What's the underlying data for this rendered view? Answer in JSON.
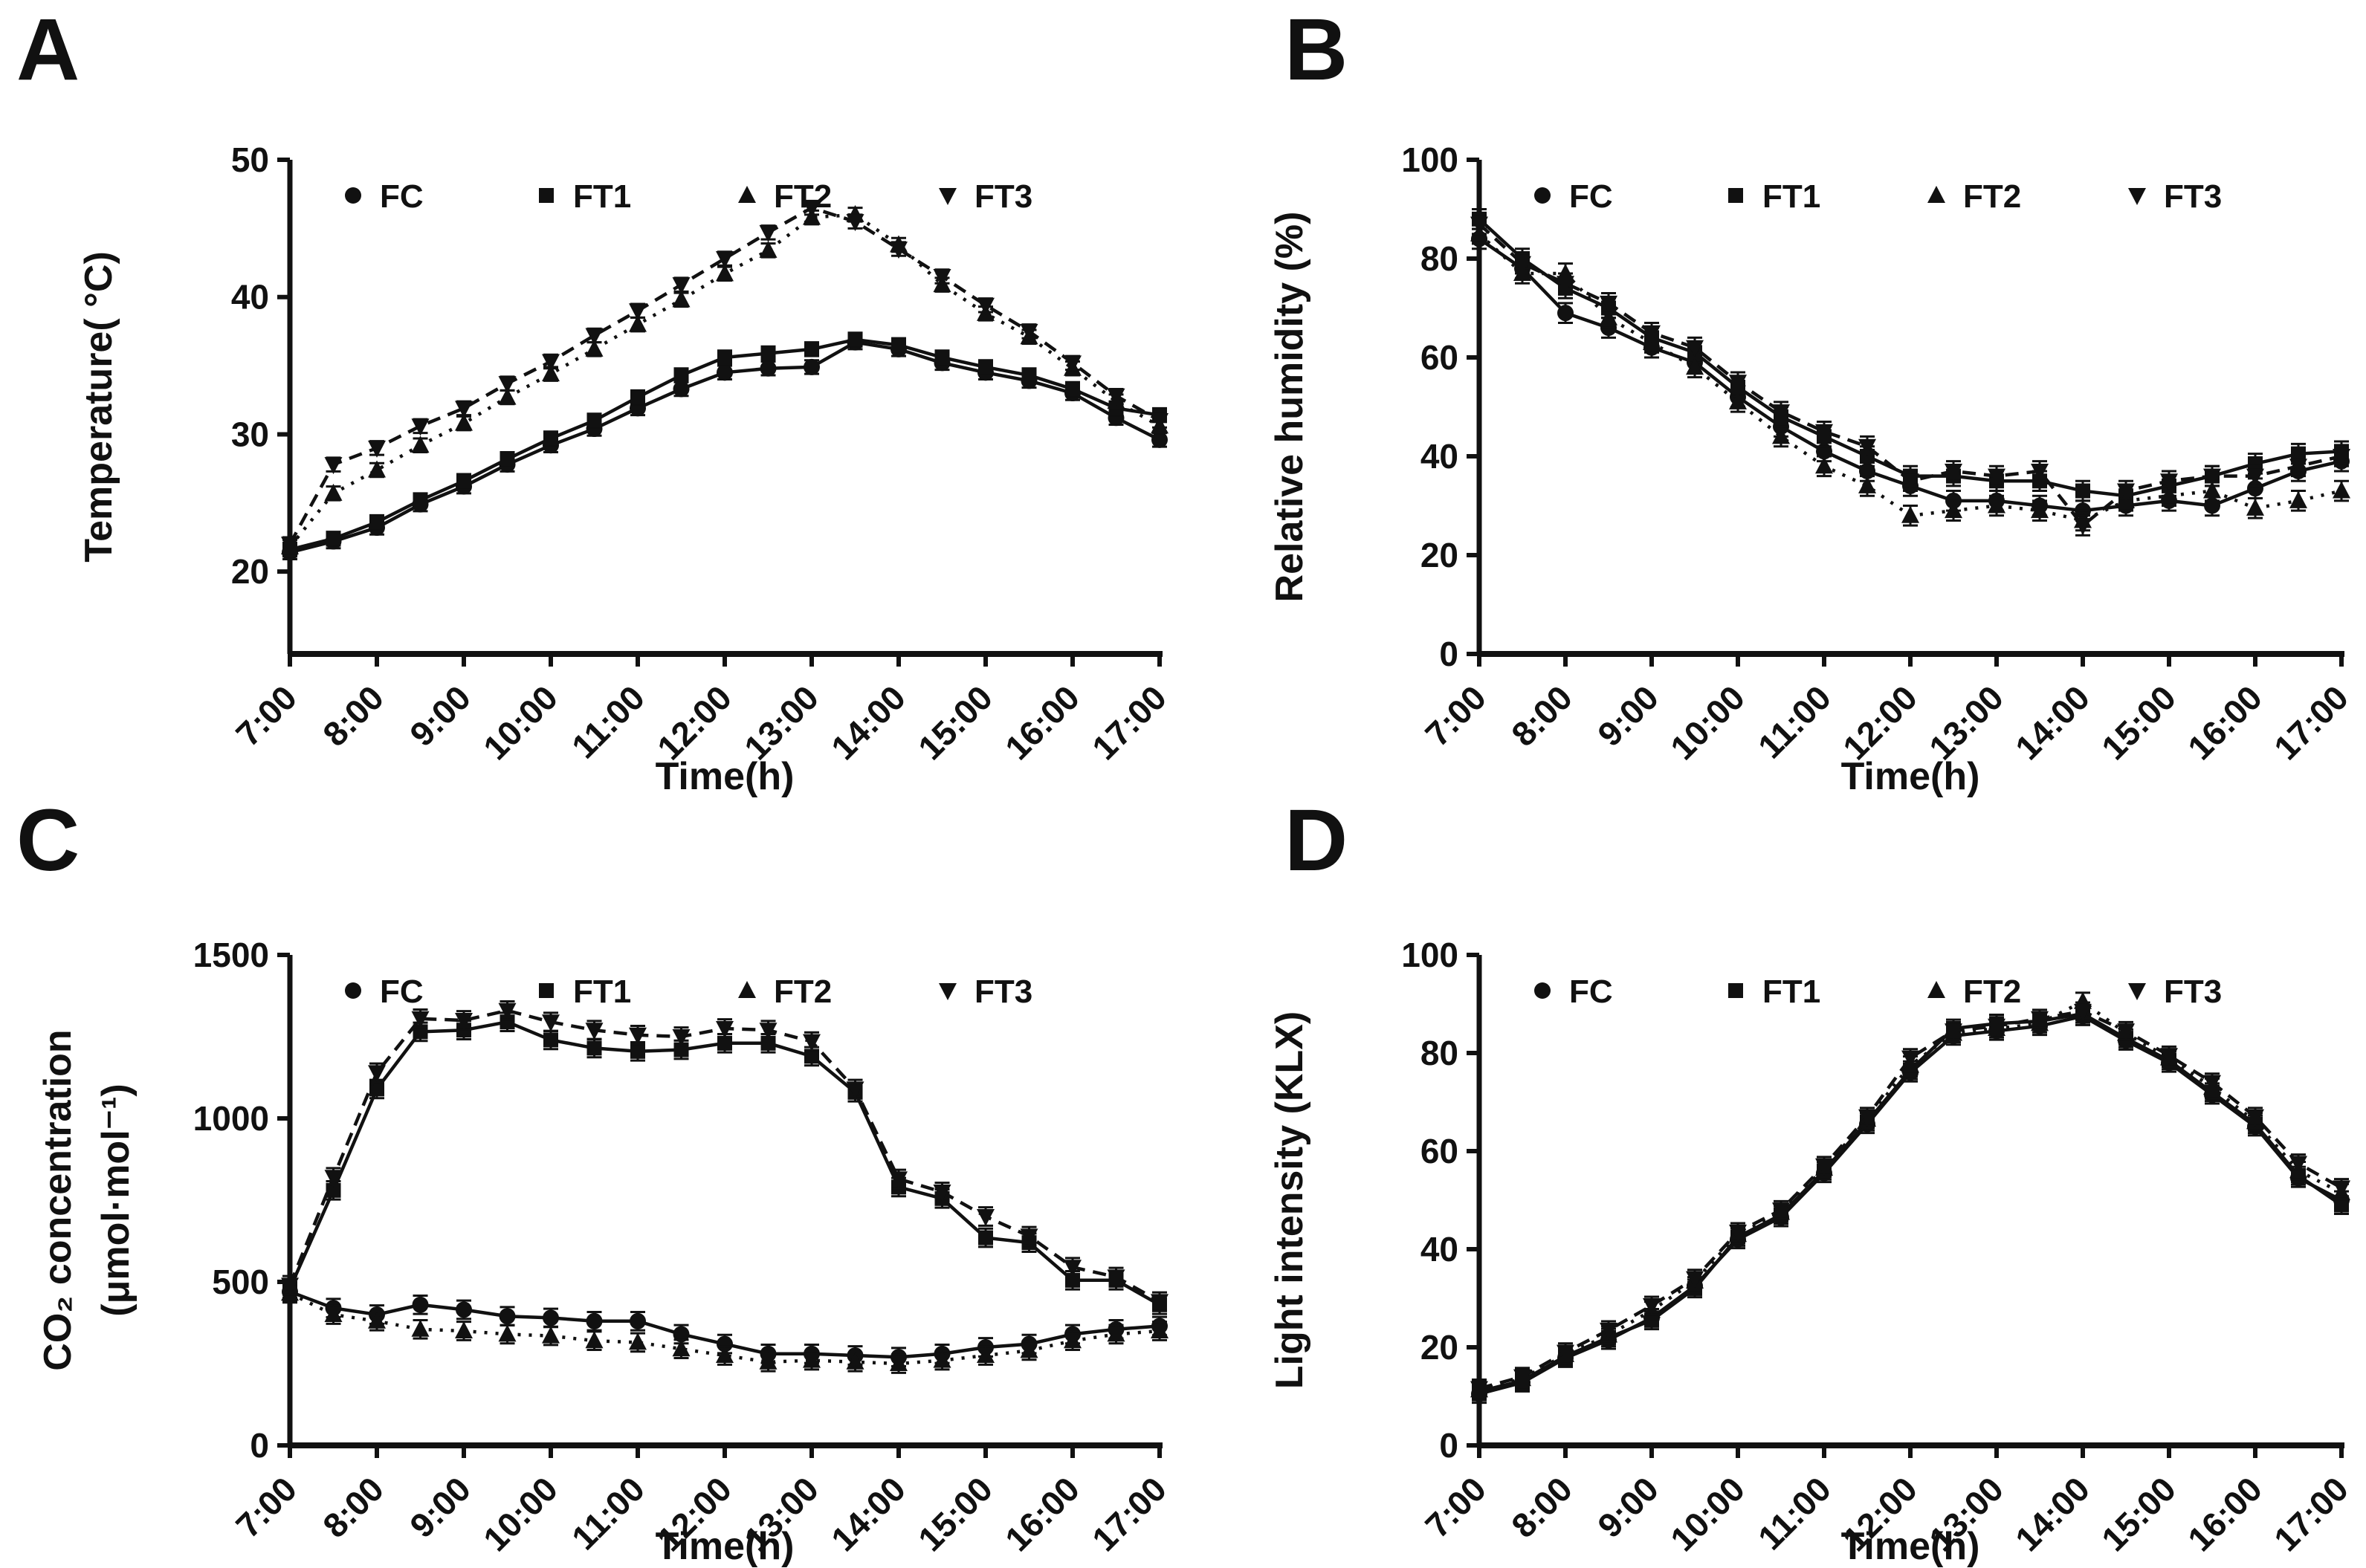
{
  "figure": {
    "background": "#ffffff",
    "ink": "#111111",
    "xlabel": "Time(h)"
  },
  "panels": [
    {
      "letter": "A"
    },
    {
      "letter": "B"
    },
    {
      "letter": "C"
    },
    {
      "letter": "D"
    }
  ],
  "chart_data": [
    {
      "id": "A",
      "type": "line",
      "title": "",
      "xlabel": "Time(h)",
      "ylabel_lines": [
        "Temperature( °C)"
      ],
      "ylim": [
        14,
        50
      ],
      "yticks": [
        20,
        30,
        40,
        50
      ],
      "xtick_every": 2,
      "legend_position": "top-left",
      "grid": false,
      "errorbar": 0.5,
      "x": [
        "7:00",
        "7:30",
        "8:00",
        "8:30",
        "9:00",
        "9:30",
        "10:00",
        "10:30",
        "11:00",
        "11:30",
        "12:00",
        "12:30",
        "13:00",
        "13:30",
        "14:00",
        "14:30",
        "15:00",
        "15:30",
        "16:00",
        "16:30",
        "17:00"
      ],
      "series": [
        {
          "name": "FC",
          "marker": "circle",
          "line": "solid",
          "values": [
            21.4,
            22.2,
            23.2,
            24.9,
            26.2,
            27.8,
            29.2,
            30.4,
            31.9,
            33.3,
            34.5,
            34.8,
            34.9,
            36.7,
            36.2,
            35.2,
            34.5,
            33.9,
            33.0,
            31.2,
            29.6
          ]
        },
        {
          "name": "FT1",
          "marker": "square",
          "line": "solid",
          "values": [
            21.6,
            22.4,
            23.6,
            25.2,
            26.6,
            28.2,
            29.7,
            31.0,
            32.7,
            34.3,
            35.6,
            35.9,
            36.2,
            36.9,
            36.5,
            35.6,
            34.9,
            34.3,
            33.3,
            31.9,
            31.4
          ]
        },
        {
          "name": "FT2",
          "marker": "triangle-up",
          "line": "dotted",
          "values": [
            21.8,
            25.7,
            27.4,
            29.2,
            30.8,
            32.7,
            34.4,
            36.2,
            38.0,
            39.8,
            41.7,
            43.4,
            45.8,
            46.0,
            43.8,
            40.9,
            38.8,
            37.1,
            34.8,
            32.4,
            30.6
          ]
        },
        {
          "name": "FT3",
          "marker": "triangle-down",
          "line": "dashed",
          "values": [
            22.0,
            27.8,
            29.0,
            30.6,
            31.9,
            33.7,
            35.3,
            37.2,
            39.0,
            40.9,
            42.8,
            44.7,
            46.5,
            45.5,
            43.5,
            41.5,
            39.4,
            37.5,
            35.2,
            32.8,
            31.0
          ]
        }
      ]
    },
    {
      "id": "B",
      "type": "line",
      "title": "",
      "xlabel": "Time(h)",
      "ylabel_lines": [
        "Relative humidity (%)"
      ],
      "ylim": [
        0,
        100
      ],
      "yticks": [
        0,
        20,
        40,
        60,
        80,
        100
      ],
      "xtick_every": 2,
      "legend_position": "top-left",
      "grid": false,
      "errorbar": 2.0,
      "x": [
        "7:00",
        "7:30",
        "8:00",
        "8:30",
        "9:00",
        "9:30",
        "10:00",
        "10:30",
        "11:00",
        "11:30",
        "12:00",
        "12:30",
        "13:00",
        "13:30",
        "14:00",
        "14:30",
        "15:00",
        "15:30",
        "16:00",
        "16:30",
        "17:00"
      ],
      "series": [
        {
          "name": "FC",
          "marker": "circle",
          "line": "solid",
          "values": [
            84,
            78,
            69,
            66,
            62,
            59,
            52,
            46,
            41,
            37,
            34,
            31,
            31,
            30,
            29,
            30,
            31,
            30,
            33.5,
            37,
            39
          ]
        },
        {
          "name": "FT1",
          "marker": "square",
          "line": "solid",
          "values": [
            88,
            80,
            74,
            70,
            64,
            61,
            54,
            48,
            44,
            40,
            36,
            36,
            35,
            35,
            33,
            32,
            34,
            36,
            38.5,
            40.5,
            41
          ]
        },
        {
          "name": "FT2",
          "marker": "triangle-up",
          "line": "dotted",
          "values": [
            85,
            77,
            77,
            68,
            63,
            58,
            51,
            44,
            38,
            34,
            28,
            29,
            30,
            29,
            27,
            31,
            32,
            33,
            29.5,
            31,
            33
          ]
        },
        {
          "name": "FT3",
          "marker": "triangle-down",
          "line": "dashed",
          "values": [
            87,
            79,
            75,
            71,
            65,
            62,
            55,
            49,
            45,
            42,
            35,
            37,
            36,
            37,
            26,
            33,
            35,
            36,
            36,
            38,
            40
          ]
        }
      ]
    },
    {
      "id": "C",
      "type": "line",
      "title": "",
      "xlabel": "Time(h)",
      "ylabel_lines": [
        "CO₂ concentration",
        "(μmol·mol⁻¹)"
      ],
      "ylim": [
        0,
        1500
      ],
      "yticks": [
        0,
        500,
        1000,
        1500
      ],
      "xtick_every": 2,
      "legend_position": "top-left",
      "grid": false,
      "errorbar": 28,
      "x": [
        "7:00",
        "7:30",
        "8:00",
        "8:30",
        "9:00",
        "9:30",
        "10:00",
        "10:30",
        "11:00",
        "11:30",
        "12:00",
        "12:30",
        "13:00",
        "13:30",
        "14:00",
        "14:30",
        "15:00",
        "15:30",
        "16:00",
        "16:30",
        "17:00"
      ],
      "series": [
        {
          "name": "FC",
          "marker": "circle",
          "line": "solid",
          "values": [
            470,
            420,
            400,
            430,
            415,
            395,
            390,
            380,
            380,
            340,
            310,
            280,
            280,
            275,
            270,
            280,
            300,
            310,
            340,
            355,
            365
          ]
        },
        {
          "name": "FT1",
          "marker": "square",
          "line": "solid",
          "values": [
            480,
            780,
            1090,
            1265,
            1270,
            1295,
            1240,
            1215,
            1205,
            1210,
            1230,
            1230,
            1190,
            1080,
            790,
            755,
            635,
            620,
            505,
            505,
            430
          ]
        },
        {
          "name": "FT2",
          "marker": "triangle-up",
          "line": "dotted",
          "values": [
            465,
            400,
            380,
            355,
            350,
            340,
            335,
            320,
            315,
            295,
            275,
            255,
            260,
            255,
            250,
            260,
            275,
            290,
            320,
            340,
            350
          ]
        },
        {
          "name": "FT3",
          "marker": "triangle-down",
          "line": "dashed",
          "values": [
            490,
            820,
            1140,
            1305,
            1300,
            1330,
            1295,
            1270,
            1255,
            1250,
            1275,
            1270,
            1235,
            1090,
            815,
            775,
            700,
            640,
            545,
            515,
            440
          ]
        }
      ]
    },
    {
      "id": "D",
      "type": "line",
      "title": "",
      "xlabel": "Time(h)",
      "ylabel_lines": [
        "Light intensity (KLX)"
      ],
      "ylim": [
        0,
        100
      ],
      "yticks": [
        0,
        20,
        40,
        60,
        80,
        100
      ],
      "xtick_every": 2,
      "legend_position": "top-left",
      "grid": false,
      "errorbar": 1.8,
      "x": [
        "7:00",
        "7:30",
        "8:00",
        "8:30",
        "9:00",
        "9:30",
        "10:00",
        "10:30",
        "11:00",
        "11:30",
        "12:00",
        "12:30",
        "13:00",
        "13:30",
        "14:00",
        "14:30",
        "15:00",
        "15:30",
        "16:00",
        "16:30",
        "17:00"
      ],
      "series": [
        {
          "name": "FC",
          "marker": "circle",
          "line": "solid",
          "values": [
            10.5,
            12.8,
            17.8,
            21.5,
            26.0,
            32.5,
            42.0,
            46.5,
            55.5,
            65.5,
            76.0,
            83.5,
            84.5,
            85.5,
            87.5,
            82.5,
            78.0,
            71.5,
            65.0,
            54.5,
            50.0
          ]
        },
        {
          "name": "FT1",
          "marker": "square",
          "line": "solid",
          "values": [
            11.0,
            13.2,
            18.2,
            22.0,
            25.5,
            32.0,
            42.5,
            47.0,
            56.0,
            66.0,
            76.5,
            85.0,
            86.0,
            86.5,
            88.0,
            83.0,
            78.5,
            72.0,
            65.5,
            55.0,
            49.0
          ]
        },
        {
          "name": "FT2",
          "marker": "triangle-up",
          "line": "dotted",
          "values": [
            11.3,
            13.6,
            18.5,
            22.5,
            27.5,
            33.5,
            43.0,
            47.5,
            56.5,
            66.5,
            77.5,
            84.0,
            85.0,
            86.0,
            90.5,
            84.0,
            79.0,
            73.0,
            66.0,
            56.0,
            51.5
          ]
        },
        {
          "name": "FT3",
          "marker": "triangle-down",
          "line": "dashed",
          "values": [
            11.6,
            14.0,
            19.0,
            23.5,
            28.5,
            34.0,
            43.5,
            48.0,
            57.0,
            67.0,
            79.0,
            84.5,
            85.5,
            87.0,
            88.5,
            84.5,
            79.5,
            74.0,
            67.0,
            57.5,
            52.5
          ]
        }
      ]
    }
  ]
}
